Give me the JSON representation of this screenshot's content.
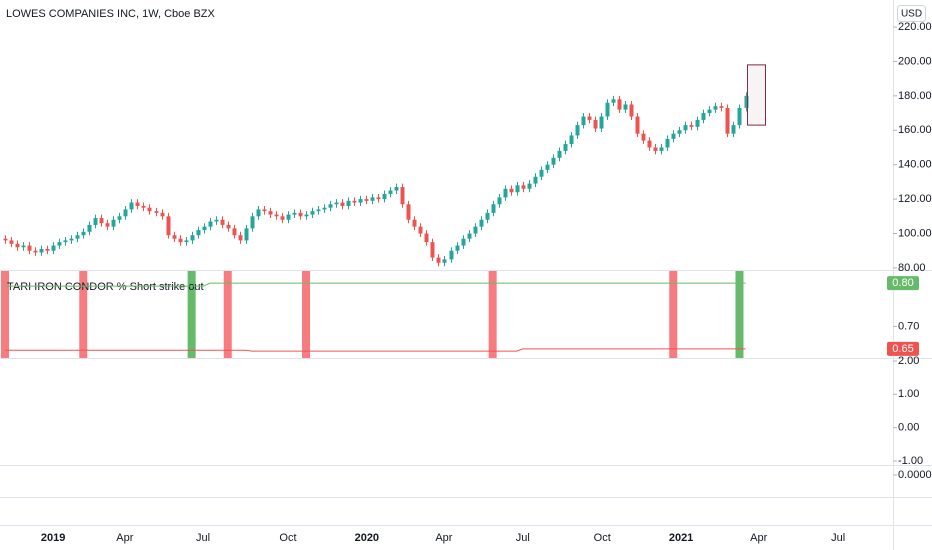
{
  "chart_data": [
    {
      "type": "candlestick",
      "title": "LOWES COMPANIES INC, 1W, Cboe BZX",
      "unit_label": "USD",
      "up_color": "#26a69a",
      "down_color": "#ef5350",
      "xlim": [
        -0.83,
        147.5
      ],
      "xticks": [
        {
          "value": 8,
          "label": "2019"
        },
        {
          "value": 19.9,
          "label": "Apr"
        },
        {
          "value": 32.9,
          "label": "Jul"
        },
        {
          "value": 47,
          "label": "Oct"
        },
        {
          "value": 60.1,
          "label": "2020"
        },
        {
          "value": 72.9,
          "label": "Apr"
        },
        {
          "value": 86,
          "label": "Jul"
        },
        {
          "value": 99.2,
          "label": "Oct"
        },
        {
          "value": 112.3,
          "label": "2021"
        },
        {
          "value": 125.2,
          "label": "Apr"
        },
        {
          "value": 138.4,
          "label": "Jul"
        }
      ],
      "ylim": [
        78.8,
        235.7
      ],
      "yticks": [
        {
          "value": 80,
          "label": "80.00"
        },
        {
          "value": 100,
          "label": "100.00"
        },
        {
          "value": 120,
          "label": "120.00"
        },
        {
          "value": 140,
          "label": "140.00"
        },
        {
          "value": 160,
          "label": "160.00"
        },
        {
          "value": 180,
          "label": "180.00"
        },
        {
          "value": 200,
          "label": "200.00"
        },
        {
          "value": 220,
          "label": "220.00"
        }
      ],
      "open": [
        97,
        96,
        94,
        92,
        93,
        90,
        89,
        91,
        90,
        93,
        95,
        96,
        97,
        99,
        101,
        105,
        109,
        106,
        104,
        108,
        110,
        114,
        118,
        116,
        115,
        113,
        112,
        110,
        99,
        97,
        95,
        96,
        99,
        102,
        104,
        107,
        108,
        105,
        103,
        99,
        96,
        103,
        110,
        114,
        113,
        111,
        110,
        108,
        111,
        112,
        110,
        111,
        113,
        114,
        115,
        117,
        118,
        116,
        119,
        118,
        120,
        119,
        121,
        120,
        123,
        125,
        127,
        117,
        108,
        104,
        100,
        95,
        86,
        83,
        85,
        90,
        93,
        97,
        100,
        104,
        108,
        112,
        117,
        121,
        126,
        124,
        128,
        126,
        129,
        133,
        137,
        140,
        144,
        148,
        152,
        157,
        163,
        168,
        166,
        161,
        168,
        176,
        178,
        172,
        175,
        168,
        158,
        154,
        150,
        148,
        150,
        155,
        158,
        160,
        163,
        162,
        166,
        170,
        172,
        174,
        173,
        158,
        163,
        173
      ],
      "high": [
        99,
        98,
        96,
        95,
        95,
        92,
        93,
        93,
        95,
        97,
        98,
        99,
        101,
        103,
        107,
        111,
        111,
        108,
        110,
        112,
        116,
        120,
        120,
        118,
        117,
        115,
        114,
        112,
        101,
        99,
        98,
        101,
        104,
        106,
        109,
        110,
        110,
        107,
        105,
        101,
        105,
        112,
        116,
        116,
        115,
        113,
        112,
        113,
        114,
        114,
        113,
        115,
        116,
        117,
        119,
        120,
        120,
        121,
        121,
        122,
        122,
        123,
        123,
        125,
        127,
        129,
        129,
        119,
        110,
        106,
        102,
        97,
        88,
        87,
        92,
        95,
        99,
        102,
        106,
        110,
        114,
        119,
        123,
        128,
        128,
        130,
        130,
        131,
        135,
        139,
        142,
        146,
        150,
        154,
        159,
        165,
        170,
        170,
        168,
        170,
        178,
        180,
        180,
        177,
        177,
        170,
        160,
        156,
        152,
        152,
        157,
        160,
        162,
        165,
        165,
        168,
        172,
        174,
        176,
        176,
        175,
        165,
        175,
        182
      ],
      "low": [
        94,
        92,
        90,
        90,
        88,
        87,
        87,
        88,
        88,
        91,
        93,
        94,
        95,
        97,
        99,
        103,
        104,
        102,
        102,
        106,
        108,
        112,
        114,
        113,
        111,
        110,
        108,
        97,
        95,
        93,
        93,
        94,
        97,
        100,
        102,
        105,
        103,
        101,
        97,
        94,
        94,
        101,
        108,
        111,
        109,
        108,
        106,
        106,
        109,
        108,
        108,
        109,
        111,
        112,
        113,
        115,
        114,
        114,
        116,
        116,
        117,
        117,
        118,
        118,
        121,
        123,
        115,
        106,
        102,
        98,
        93,
        84,
        81,
        81,
        83,
        88,
        91,
        95,
        98,
        102,
        106,
        110,
        115,
        119,
        122,
        122,
        124,
        124,
        127,
        131,
        135,
        138,
        142,
        146,
        150,
        155,
        161,
        164,
        159,
        159,
        166,
        174,
        170,
        170,
        166,
        156,
        152,
        148,
        146,
        146,
        148,
        153,
        156,
        158,
        160,
        160,
        164,
        168,
        170,
        171,
        156,
        156,
        161,
        171
      ],
      "close": [
        96,
        94,
        92,
        93,
        90,
        89,
        91,
        90,
        93,
        95,
        96,
        97,
        99,
        101,
        105,
        109,
        106,
        104,
        108,
        110,
        114,
        118,
        116,
        115,
        113,
        112,
        110,
        99,
        97,
        95,
        96,
        99,
        102,
        104,
        107,
        108,
        105,
        103,
        99,
        96,
        103,
        110,
        114,
        113,
        111,
        110,
        108,
        111,
        112,
        110,
        111,
        113,
        114,
        115,
        117,
        118,
        116,
        119,
        118,
        120,
        119,
        121,
        120,
        123,
        125,
        127,
        117,
        108,
        104,
        100,
        95,
        86,
        83,
        85,
        90,
        93,
        97,
        100,
        104,
        108,
        112,
        117,
        121,
        126,
        124,
        128,
        126,
        129,
        133,
        137,
        140,
        144,
        148,
        152,
        157,
        163,
        168,
        166,
        161,
        168,
        176,
        178,
        172,
        175,
        168,
        158,
        154,
        150,
        148,
        150,
        155,
        158,
        160,
        163,
        162,
        166,
        170,
        172,
        174,
        173,
        158,
        163,
        173,
        180
      ],
      "projection_box": {
        "low": 163,
        "high": 198,
        "color": "#7b2d43"
      }
    },
    {
      "type": "line",
      "title": "TARI IRON CONDOR % Short strike out",
      "ylim": [
        0.627,
        0.828
      ],
      "yticks": [
        {
          "value": 0.7,
          "label": "0.70"
        }
      ],
      "signal_bars": {
        "x": [
          0,
          13,
          31,
          37,
          50,
          81,
          111,
          122
        ],
        "colors": [
          "#f77c80",
          "#f77c80",
          "#66bb6a",
          "#f77c80",
          "#f77c80",
          "#f77c80",
          "#f77c80",
          "#66bb6a"
        ]
      },
      "series": [
        {
          "color": "#66bb6a",
          "x": [
            0,
            33,
            34,
            123
          ],
          "values": [
            0.793,
            0.793,
            0.8,
            0.8
          ],
          "value_labels": [
            null,
            null,
            null,
            "0.80"
          ]
        },
        {
          "color": "#ef5350",
          "x": [
            0,
            40,
            41,
            85,
            86,
            123
          ],
          "values": [
            0.645,
            0.645,
            0.643,
            0.643,
            0.648,
            0.648
          ],
          "value_labels": [
            null,
            null,
            null,
            null,
            null,
            "0.65"
          ]
        }
      ]
    },
    {
      "type": "line",
      "ylim": [
        -1.12,
        2.09
      ],
      "yticks": [
        {
          "value": 2,
          "label": "2.00"
        },
        {
          "value": 1,
          "label": "1.00"
        },
        {
          "value": 0,
          "label": "0.00"
        },
        {
          "value": -1,
          "label": "-1.00"
        }
      ],
      "series": []
    },
    {
      "type": "line",
      "ylim": [
        -5,
        1
      ],
      "yticks": [
        {
          "value": 0,
          "label": "0.0000"
        }
      ],
      "series": []
    }
  ]
}
